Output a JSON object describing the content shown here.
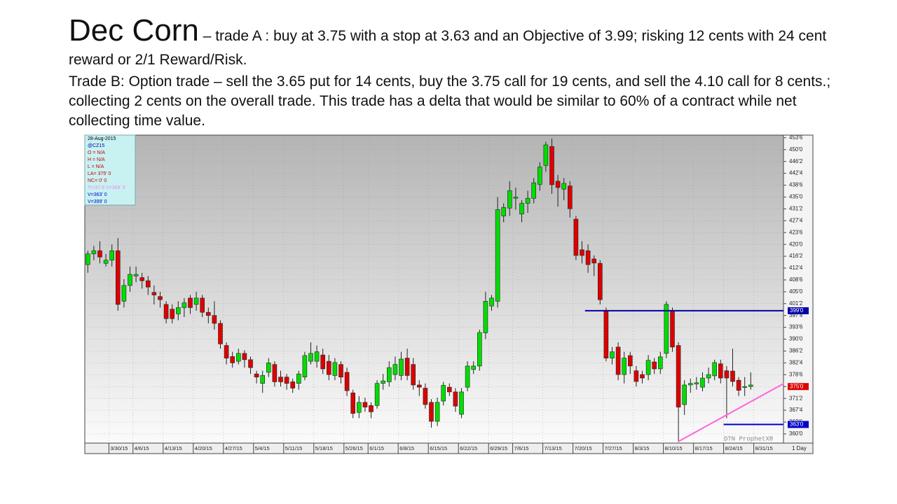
{
  "title": "Dec Corn",
  "trade_a": "– trade A : buy at 3.75 with a stop at 3.63 and an Objective of 3.99; risking 12 cents with 24 cent reward or 2/1 Reward/Risk.",
  "trade_b": "Trade B:  Option trade – sell the 3.65 put for 14 cents, buy the 3.75 call for 19 cents, and sell the 4.10 call for 8 cents.; collecting 2 cents on the overall trade. This trade has a delta that would be similar to 60% of a contract while net collecting time value.",
  "chart_data": {
    "type": "candlestick",
    "watermark": "DTN ProphetX®",
    "interval": "1 Day",
    "info_box": [
      "28-Aug-2015",
      "@CZ15",
      "O = N/A",
      "H = N/A",
      "L = N/A",
      "LA= 375' 0",
      "NC= 0' 0",
      "Tr=37.8  V=369' 3",
      "V=363' 0",
      "V=399' 0"
    ],
    "up_color": "#00dd00",
    "down_color": "#dd0000",
    "ylim": [
      357.1,
      454.6
    ],
    "yticks": [
      {
        "value": 360,
        "label": "360'0"
      },
      {
        "value": 363.75,
        "label": "363'6"
      },
      {
        "value": 367.5,
        "label": "367'4"
      },
      {
        "value": 371.25,
        "label": "371'2"
      },
      {
        "value": 375,
        "label": "375'0"
      },
      {
        "value": 378.75,
        "label": "378'6"
      },
      {
        "value": 382.5,
        "label": "382'4"
      },
      {
        "value": 386.25,
        "label": "386'2"
      },
      {
        "value": 390,
        "label": "390'0"
      },
      {
        "value": 393.75,
        "label": "393'6"
      },
      {
        "value": 397.5,
        "label": "397'4"
      },
      {
        "value": 401.25,
        "label": "401'2"
      },
      {
        "value": 405,
        "label": "405'0"
      },
      {
        "value": 408.75,
        "label": "408'6"
      },
      {
        "value": 412.5,
        "label": "412'4"
      },
      {
        "value": 416.25,
        "label": "416'2"
      },
      {
        "value": 420,
        "label": "420'0"
      },
      {
        "value": 423.75,
        "label": "423'6"
      },
      {
        "value": 427.5,
        "label": "427'4"
      },
      {
        "value": 431.25,
        "label": "431'2"
      },
      {
        "value": 435,
        "label": "435'0"
      },
      {
        "value": 438.75,
        "label": "438'6"
      },
      {
        "value": 442.5,
        "label": "442'4"
      },
      {
        "value": 446.25,
        "label": "446'2"
      },
      {
        "value": 450,
        "label": "450'0"
      },
      {
        "value": 453.75,
        "label": "453'6"
      }
    ],
    "categories": [
      null,
      null,
      null,
      null,
      "3/30/15",
      null,
      null,
      null,
      "4/6/15",
      null,
      null,
      null,
      null,
      "4/13/15",
      null,
      null,
      null,
      null,
      "4/20/15",
      null,
      null,
      null,
      null,
      "4/27/15",
      null,
      null,
      null,
      null,
      "5/4/15",
      null,
      null,
      null,
      null,
      "5/11/15",
      null,
      null,
      null,
      null,
      "5/18/15",
      null,
      null,
      null,
      null,
      "5/26/15",
      null,
      null,
      null,
      "6/1/15",
      null,
      null,
      null,
      null,
      "6/8/15",
      null,
      null,
      null,
      null,
      "6/15/15",
      null,
      null,
      null,
      null,
      "6/22/15",
      null,
      null,
      null,
      null,
      "6/29/15",
      null,
      null,
      null,
      "7/6/15",
      null,
      null,
      null,
      null,
      "7/13/15",
      null,
      null,
      null,
      null,
      "7/20/15",
      null,
      null,
      null,
      null,
      "7/27/15",
      null,
      null,
      null,
      null,
      "8/3/15",
      null,
      null,
      null,
      null,
      "8/10/15",
      null,
      null,
      null,
      null,
      "8/17/15",
      null,
      null,
      null,
      null,
      "8/24/15",
      null,
      null,
      null,
      null,
      "8/31/15"
    ],
    "open": [
      413.6,
      417,
      418,
      414,
      415,
      418,
      402,
      407,
      410,
      409.5,
      408.5,
      404.8,
      403.5,
      401,
      399.5,
      398,
      400,
      403,
      401,
      403,
      398.5,
      397.5,
      395,
      388,
      384.5,
      383,
      385.5,
      383.5,
      379,
      376,
      379.5,
      382,
      378,
      378,
      376.5,
      376,
      378,
      383,
      383,
      385,
      383,
      378.5,
      382,
      379.5,
      373,
      366.8,
      370,
      369,
      369,
      376,
      376.5,
      378.8,
      378.5,
      384,
      382,
      375.5,
      374.5,
      370,
      364,
      370.4,
      374.8,
      373.3,
      366.2,
      374.8,
      380.4,
      381.5,
      392,
      400.5,
      402,
      429,
      431.5,
      434.6,
      429.6,
      433,
      434.6,
      439,
      445,
      451,
      440,
      437.5,
      438.5,
      428,
      418.3,
      418,
      415.4,
      414,
      399,
      384,
      387.5,
      378.8,
      384.8,
      380,
      378.8,
      378.8,
      382.8,
      380.6,
      385.5,
      399,
      388,
      369.3,
      375.5,
      375.8,
      374.8,
      377.7,
      378.4,
      382.2,
      380,
      379.9,
      377,
      374.7,
      375,
      null
    ],
    "high": [
      418,
      419.5,
      421,
      417,
      420,
      422,
      409,
      413,
      413,
      411,
      410,
      407,
      405,
      402,
      401,
      402,
      403,
      404,
      405,
      404,
      400,
      402,
      396,
      389,
      386,
      387,
      386.5,
      384.5,
      380,
      380,
      384,
      383,
      380,
      379,
      377.5,
      380,
      386,
      389,
      388,
      387,
      385,
      384,
      383,
      381,
      374,
      372,
      371.5,
      370,
      377,
      379,
      383,
      384.5,
      386,
      387,
      384,
      377,
      376,
      371,
      371.5,
      376.5,
      376,
      374.5,
      374.5,
      383,
      383,
      393,
      405,
      404,
      435,
      433,
      440,
      438,
      434,
      437,
      441,
      446,
      452.5,
      453.5,
      442,
      441,
      440,
      429,
      421,
      420,
      416.5,
      415,
      400,
      387.5,
      389,
      386,
      386,
      381.5,
      380,
      385,
      384,
      386,
      402,
      400,
      389,
      377,
      377.5,
      378,
      379.5,
      381,
      383.5,
      383.5,
      381.5,
      387,
      378,
      378,
      379.5,
      null
    ],
    "low": [
      411,
      415,
      414,
      413,
      413,
      399,
      400,
      405,
      408,
      406,
      404,
      401,
      400,
      395,
      395,
      396,
      397,
      398,
      399,
      397,
      395,
      393,
      387,
      382,
      381,
      382,
      381,
      379,
      376,
      373,
      378,
      375,
      375,
      374,
      373,
      374,
      377,
      382,
      381,
      379,
      377,
      377,
      376,
      372,
      365,
      365,
      367,
      365,
      368,
      374,
      375,
      377,
      377,
      377,
      374,
      372,
      368,
      362,
      362.5,
      369,
      372,
      367,
      365,
      373.5,
      379,
      380,
      390,
      399,
      400,
      427,
      429,
      431,
      427,
      430,
      433,
      437,
      443,
      436,
      432,
      434,
      428.5,
      415,
      414,
      411,
      410,
      401,
      383,
      382,
      377,
      376,
      379,
      375,
      376,
      377,
      379,
      379,
      384,
      386,
      357.5,
      366,
      373,
      374,
      373.5,
      376,
      377,
      376,
      365,
      375,
      372,
      372,
      374,
      null
    ],
    "close": [
      417,
      418,
      416,
      415,
      418,
      401,
      407,
      410.5,
      410.5,
      408.5,
      406.5,
      404,
      402.5,
      396.5,
      396.5,
      400,
      401.5,
      400,
      403,
      398.5,
      397.5,
      395,
      388.5,
      384,
      382.5,
      385.5,
      383.5,
      381,
      378,
      378.5,
      382.5,
      376.5,
      376.5,
      376,
      374.5,
      379,
      384.8,
      385.5,
      386,
      380.6,
      378.8,
      382.6,
      378,
      373.7,
      366.5,
      370,
      368.5,
      367,
      376,
      376.8,
      381,
      382,
      383.7,
      378.5,
      375.5,
      374.8,
      369.3,
      364,
      370,
      375.4,
      373.3,
      368.8,
      373.3,
      381.5,
      381.5,
      392.1,
      402,
      403,
      431,
      431.7,
      437,
      435,
      433,
      434.6,
      439.5,
      444.5,
      451.5,
      438.9,
      438,
      439.3,
      431.3,
      416.5,
      416.5,
      413.6,
      414.1,
      402.5,
      384,
      386,
      378.8,
      384,
      381.5,
      376.6,
      377.7,
      383.3,
      380.6,
      384.4,
      401,
      387.5,
      368.5,
      375.5,
      376,
      376.2,
      377.7,
      378.8,
      382.6,
      377.7,
      377.7,
      376.6,
      373.8,
      375,
      375.5,
      null
    ],
    "hlines": [
      {
        "value": 399,
        "label": "399'0",
        "color": "#0000aa",
        "from": 83
      },
      {
        "value": 363,
        "label": "363'0",
        "color": "#0000cc",
        "from": 106
      }
    ],
    "last_price": {
      "value": 375,
      "label": "375'0",
      "color": "#dd0000"
    },
    "trendline": {
      "color": "#ff66dd",
      "x": [
        98,
        115.5
      ],
      "y": [
        357.6,
        376
      ]
    }
  }
}
